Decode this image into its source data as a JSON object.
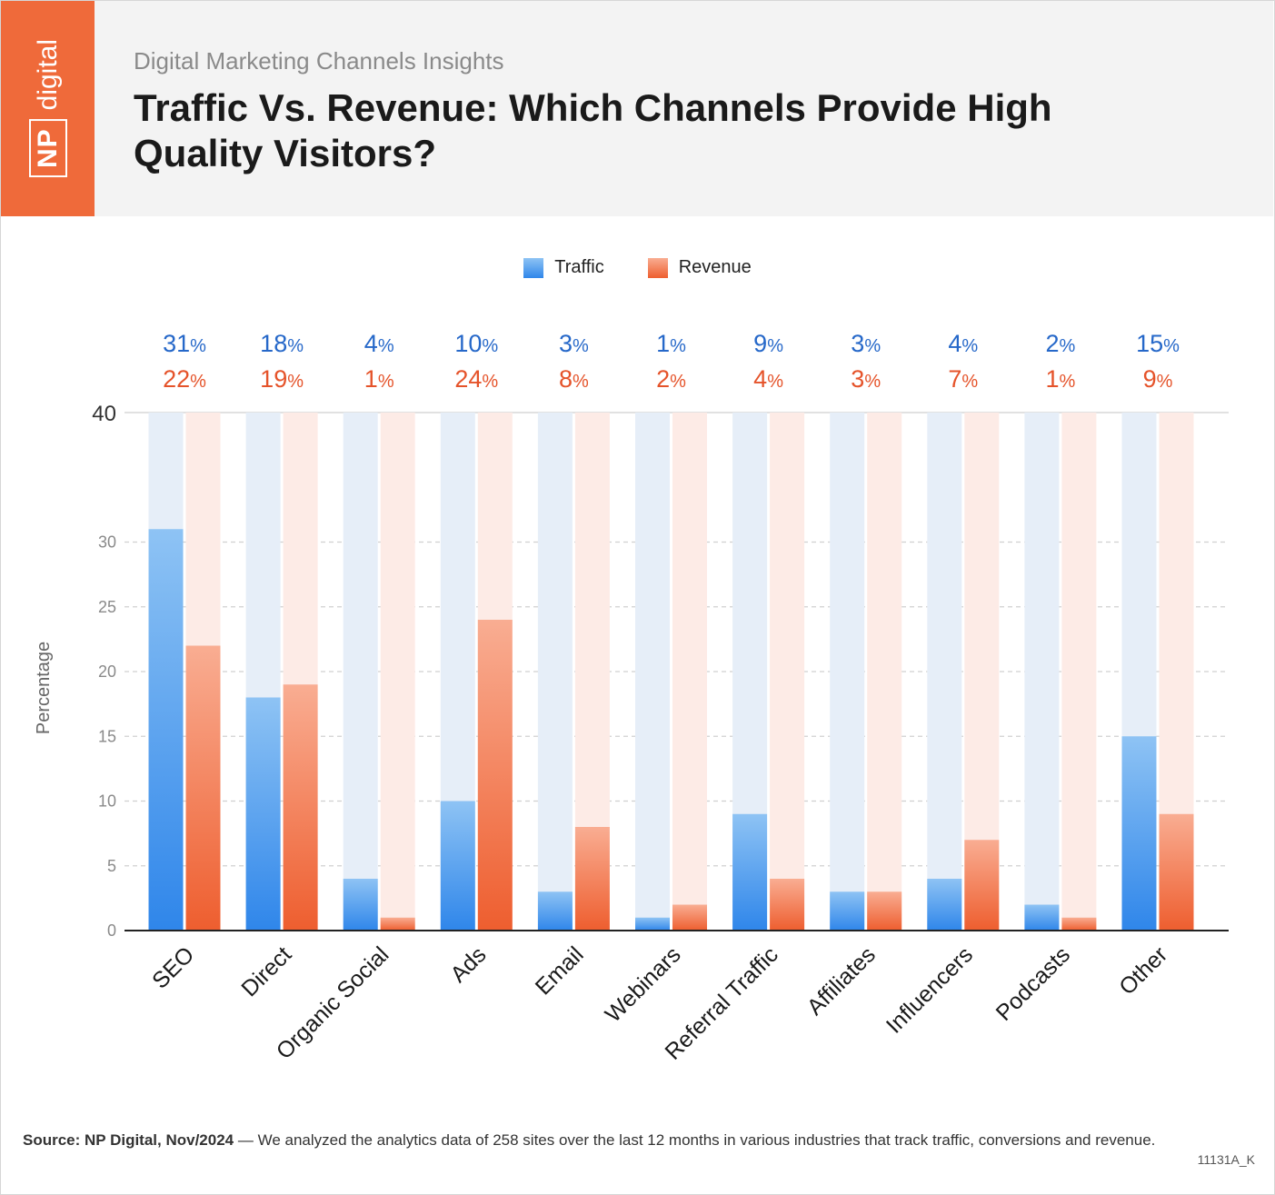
{
  "header": {
    "logo_np": "NP",
    "logo_word": "digital",
    "subtitle": "Digital Marketing Channels Insights",
    "title": "Traffic Vs. Revenue: Which Channels Provide High Quality Visitors?"
  },
  "footer": {
    "source_label": "Source:",
    "source_name": "NP Digital, Nov/2024",
    "source_text": "— We analyzed the analytics data of 258 sites over the last 12 months in various industries that track traffic, conversions and revenue.",
    "code": "11131A_K"
  },
  "chart_data": {
    "type": "bar",
    "categories": [
      "SEO",
      "Direct",
      "Organic Social",
      "Ads",
      "Email",
      "Webinars",
      "Referral Traffic",
      "Affiliates",
      "Influencers",
      "Podcasts",
      "Other"
    ],
    "series": [
      {
        "name": "Traffic",
        "values": [
          31,
          18,
          4,
          10,
          3,
          1,
          9,
          3,
          4,
          2,
          15
        ],
        "color": "#2f86ea",
        "light_color": "#8ec3f4",
        "track_color": "#e6eef8",
        "label_color": "#2668c9"
      },
      {
        "name": "Revenue",
        "values": [
          22,
          19,
          1,
          24,
          8,
          2,
          4,
          3,
          7,
          1,
          9
        ],
        "color": "#ee5e2f",
        "light_color": "#f9ad92",
        "track_color": "#fdebe6",
        "label_color": "#e5532a"
      }
    ],
    "ylabel": "Percentage",
    "xlabel": "",
    "ylim": [
      0,
      40
    ],
    "yticks": [
      0,
      5,
      10,
      15,
      20,
      25,
      30,
      40
    ],
    "value_suffix": "%",
    "grid": true,
    "legend_position": "top-center"
  }
}
